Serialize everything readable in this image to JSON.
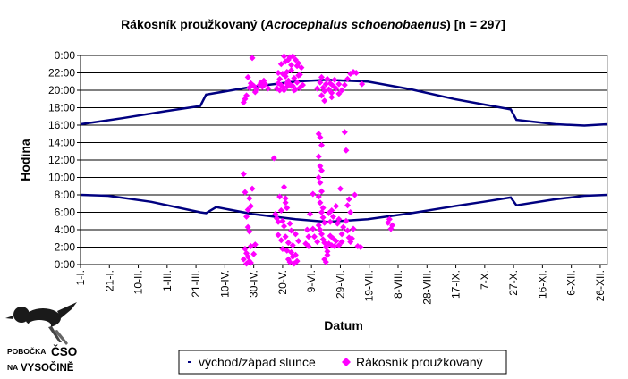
{
  "chart_data": {
    "type": "scatter",
    "title_prefix": "Rákosník proužkovaný (",
    "title_species": "Acrocephalus schoenobaenus",
    "title_suffix": ") [n = 297]",
    "xlabel": "Datum",
    "ylabel": "Hodina",
    "x_unit": "day of year",
    "xlim": [
      1,
      366
    ],
    "ylim": [
      0,
      24
    ],
    "y_ticks": [
      {
        "value": 24,
        "label": "0:00"
      },
      {
        "value": 22,
        "label": "22:00"
      },
      {
        "value": 20,
        "label": "20:00"
      },
      {
        "value": 18,
        "label": "18:00"
      },
      {
        "value": 16,
        "label": "16:00"
      },
      {
        "value": 14,
        "label": "14:00"
      },
      {
        "value": 12,
        "label": "12:00"
      },
      {
        "value": 10,
        "label": "10:00"
      },
      {
        "value": 8,
        "label": "8:00"
      },
      {
        "value": 6,
        "label": "6:00"
      },
      {
        "value": 4,
        "label": "4:00"
      },
      {
        "value": 2,
        "label": "2:00"
      },
      {
        "value": 0,
        "label": "0:00"
      }
    ],
    "x_ticks": [
      {
        "day": 1,
        "label": "1-I."
      },
      {
        "day": 21,
        "label": "21-I."
      },
      {
        "day": 41,
        "label": "10-II."
      },
      {
        "day": 61,
        "label": "1-III."
      },
      {
        "day": 81,
        "label": "21-III."
      },
      {
        "day": 101,
        "label": "10-IV."
      },
      {
        "day": 121,
        "label": "30-IV."
      },
      {
        "day": 141,
        "label": "20-V."
      },
      {
        "day": 161,
        "label": "9-VI."
      },
      {
        "day": 181,
        "label": "29-VI."
      },
      {
        "day": 201,
        "label": "19-VII."
      },
      {
        "day": 221,
        "label": "8-VIII."
      },
      {
        "day": 241,
        "label": "28-VIII."
      },
      {
        "day": 261,
        "label": "17-IX."
      },
      {
        "day": 281,
        "label": "7-X."
      },
      {
        "day": 301,
        "label": "27-X."
      },
      {
        "day": 321,
        "label": "16-XI."
      },
      {
        "day": 341,
        "label": "6-XII."
      },
      {
        "day": 361,
        "label": "26-XII."
      }
    ],
    "series": [
      {
        "name": "sunset",
        "style": "line",
        "color": "#000080",
        "points": [
          [
            1,
            16.1
          ],
          [
            30,
            16.8
          ],
          [
            60,
            17.6
          ],
          [
            84,
            18.2
          ],
          [
            88,
            19.5
          ],
          [
            120,
            20.4
          ],
          [
            150,
            21.0
          ],
          [
            172,
            21.2
          ],
          [
            200,
            21.0
          ],
          [
            230,
            20.1
          ],
          [
            260,
            19.0
          ],
          [
            299,
            17.8
          ],
          [
            303,
            16.6
          ],
          [
            330,
            16.1
          ],
          [
            350,
            15.95
          ],
          [
            366,
            16.1
          ]
        ]
      },
      {
        "name": "sunrise",
        "style": "line",
        "color": "#000080",
        "points": [
          [
            1,
            8.0
          ],
          [
            20,
            7.9
          ],
          [
            50,
            7.2
          ],
          [
            84,
            6.0
          ],
          [
            88,
            5.9
          ],
          [
            95,
            6.6
          ],
          [
            120,
            5.8
          ],
          [
            150,
            5.2
          ],
          [
            172,
            4.9
          ],
          [
            200,
            5.2
          ],
          [
            230,
            5.9
          ],
          [
            260,
            6.7
          ],
          [
            280,
            7.2
          ],
          [
            299,
            7.7
          ],
          [
            303,
            6.8
          ],
          [
            330,
            7.5
          ],
          [
            350,
            7.9
          ],
          [
            366,
            8.0
          ]
        ]
      },
      {
        "name": "Rákosník proužkovaný",
        "style": "points",
        "color": "#ff00ff",
        "points": [
          [
            114,
            18.6
          ],
          [
            115,
            19.0
          ],
          [
            116,
            19.4
          ],
          [
            118,
            20.3
          ],
          [
            119,
            20.8
          ],
          [
            121,
            20.5
          ],
          [
            117,
            21.5
          ],
          [
            123,
            20.1
          ],
          [
            125,
            20.6
          ],
          [
            127,
            20.4
          ],
          [
            129,
            20.7
          ],
          [
            131,
            20.2
          ],
          [
            128,
            21.1
          ],
          [
            122,
            19.8
          ],
          [
            120,
            23.7
          ],
          [
            126,
            20.9
          ],
          [
            137,
            20.2
          ],
          [
            138,
            20.8
          ],
          [
            139,
            21.3
          ],
          [
            140,
            20.6
          ],
          [
            141,
            21.9
          ],
          [
            142,
            20.0
          ],
          [
            143,
            21.6
          ],
          [
            144,
            20.4
          ],
          [
            145,
            21.1
          ],
          [
            146,
            20.7
          ],
          [
            147,
            22.3
          ],
          [
            148,
            20.5
          ],
          [
            149,
            21.4
          ],
          [
            150,
            20.1
          ],
          [
            151,
            20.9
          ],
          [
            152,
            21.7
          ],
          [
            153,
            20.3
          ],
          [
            154,
            22.6
          ],
          [
            138,
            22.0
          ],
          [
            140,
            23.0
          ],
          [
            142,
            23.9
          ],
          [
            143,
            23.3
          ],
          [
            144,
            22.1
          ],
          [
            145,
            23.5
          ],
          [
            146,
            23.8
          ],
          [
            147,
            22.9
          ],
          [
            148,
            23.9
          ],
          [
            150,
            23.5
          ],
          [
            151,
            22.8
          ],
          [
            152,
            23.1
          ],
          [
            139,
            20.0
          ],
          [
            141,
            20.4
          ],
          [
            149,
            20.0
          ],
          [
            153,
            21.8
          ],
          [
            155,
            20.6
          ],
          [
            144,
            20.8
          ],
          [
            147,
            20.5
          ],
          [
            165,
            20.2
          ],
          [
            167,
            20.9
          ],
          [
            168,
            21.5
          ],
          [
            169,
            20.3
          ],
          [
            170,
            19.9
          ],
          [
            171,
            20.7
          ],
          [
            172,
            21.3
          ],
          [
            173,
            20.1
          ],
          [
            174,
            20.8
          ],
          [
            175,
            19.7
          ],
          [
            176,
            20.5
          ],
          [
            177,
            21.2
          ],
          [
            178,
            20.2
          ],
          [
            180,
            20.7
          ],
          [
            182,
            20.0
          ],
          [
            184,
            20.6
          ],
          [
            186,
            21.3
          ],
          [
            188,
            21.9
          ],
          [
            190,
            22.1
          ],
          [
            192,
            22.0
          ],
          [
            196,
            20.7
          ],
          [
            170,
            18.8
          ],
          [
            168,
            19.4
          ],
          [
            175,
            19.2
          ],
          [
            180,
            19.6
          ],
          [
            114,
            10.4
          ],
          [
            117,
            6.3
          ],
          [
            118,
            7.6
          ],
          [
            116,
            5.5
          ],
          [
            117,
            4.3
          ],
          [
            118,
            3.8
          ],
          [
            119,
            2.1
          ],
          [
            115,
            1.8
          ],
          [
            116,
            1.3
          ],
          [
            117,
            0.9
          ],
          [
            118,
            0.4
          ],
          [
            119,
            0.2
          ],
          [
            114,
            0.6
          ],
          [
            116,
            0.1
          ],
          [
            115,
            8.3
          ],
          [
            119,
            6.7
          ],
          [
            120,
            8.7
          ],
          [
            121,
            1.2
          ],
          [
            122,
            2.3
          ],
          [
            135,
            12.2
          ],
          [
            136,
            5.8
          ],
          [
            137,
            5.3
          ],
          [
            138,
            4.9
          ],
          [
            138,
            3.4
          ],
          [
            139,
            7.8
          ],
          [
            140,
            6.2
          ],
          [
            140,
            2.8
          ],
          [
            141,
            1.8
          ],
          [
            141,
            5.0
          ],
          [
            142,
            8.9
          ],
          [
            142,
            4.4
          ],
          [
            143,
            3.2
          ],
          [
            143,
            7.1
          ],
          [
            144,
            1.6
          ],
          [
            144,
            6.5
          ],
          [
            145,
            2.5
          ],
          [
            145,
            0.6
          ],
          [
            146,
            4.7
          ],
          [
            146,
            0.3
          ],
          [
            147,
            3.9
          ],
          [
            147,
            1.4
          ],
          [
            148,
            2.2
          ],
          [
            148,
            0.9
          ],
          [
            149,
            0.1
          ],
          [
            150,
            1.1
          ],
          [
            150,
            3.5
          ],
          [
            151,
            0.4
          ],
          [
            152,
            2.7
          ],
          [
            143,
            7.6
          ],
          [
            157,
            2.4
          ],
          [
            158,
            4.0
          ],
          [
            159,
            3.2
          ],
          [
            159,
            2.1
          ],
          [
            160,
            5.8
          ],
          [
            162,
            4.1
          ],
          [
            163,
            3.2
          ],
          [
            165,
            2.6
          ],
          [
            162,
            8.1
          ],
          [
            166,
            15.0
          ],
          [
            167,
            14.6
          ],
          [
            168,
            13.7
          ],
          [
            166,
            12.4
          ],
          [
            167,
            11.3
          ],
          [
            168,
            10.8
          ],
          [
            166,
            10.0
          ],
          [
            167,
            9.4
          ],
          [
            168,
            8.4
          ],
          [
            166,
            7.8
          ],
          [
            167,
            7.1
          ],
          [
            168,
            6.0
          ],
          [
            169,
            5.4
          ],
          [
            170,
            4.8
          ],
          [
            166,
            4.5
          ],
          [
            167,
            4.0
          ],
          [
            168,
            3.5
          ],
          [
            169,
            2.9
          ],
          [
            170,
            2.5
          ],
          [
            171,
            2.0
          ],
          [
            172,
            1.5
          ],
          [
            173,
            2.4
          ],
          [
            174,
            3.3
          ],
          [
            175,
            2.2
          ],
          [
            176,
            3.0
          ],
          [
            177,
            2.1
          ],
          [
            178,
            2.7
          ],
          [
            180,
            2.2
          ],
          [
            182,
            2.6
          ],
          [
            174,
            4.9
          ],
          [
            176,
            5.5
          ],
          [
            178,
            6.7
          ],
          [
            180,
            5.2
          ],
          [
            181,
            8.7
          ],
          [
            183,
            4.3
          ],
          [
            185,
            5.0
          ],
          [
            186,
            3.9
          ],
          [
            187,
            3.1
          ],
          [
            188,
            2.6
          ],
          [
            184,
            15.2
          ],
          [
            185,
            13.1
          ],
          [
            187,
            7.5
          ],
          [
            188,
            6.0
          ],
          [
            189,
            3.0
          ],
          [
            190,
            4.1
          ],
          [
            191,
            8.0
          ],
          [
            193,
            2.1
          ],
          [
            195,
            2.0
          ],
          [
            170,
            0.6
          ],
          [
            171,
            0.3
          ],
          [
            172,
            1.1
          ],
          [
            169,
            6.5
          ],
          [
            173,
            5.9
          ],
          [
            175,
            6.2
          ],
          [
            179,
            4.7
          ],
          [
            182,
            3.5
          ],
          [
            186,
            6.8
          ],
          [
            215,
            5.2
          ],
          [
            216,
            4.1
          ],
          [
            217,
            4.5
          ],
          [
            214,
            4.8
          ]
        ]
      }
    ],
    "legend": {
      "position": "bottom-center",
      "entries": [
        {
          "label": "východ/západ slunce",
          "marker": "dash",
          "color": "#000080"
        },
        {
          "label": "Rákosník proužkovaný",
          "marker": "diamond",
          "color": "#ff00ff"
        }
      ]
    }
  },
  "logo": {
    "line1": "POBOČKA",
    "line2": "ČSO",
    "line3": "NA",
    "line4": "VYSOČINĚ"
  }
}
